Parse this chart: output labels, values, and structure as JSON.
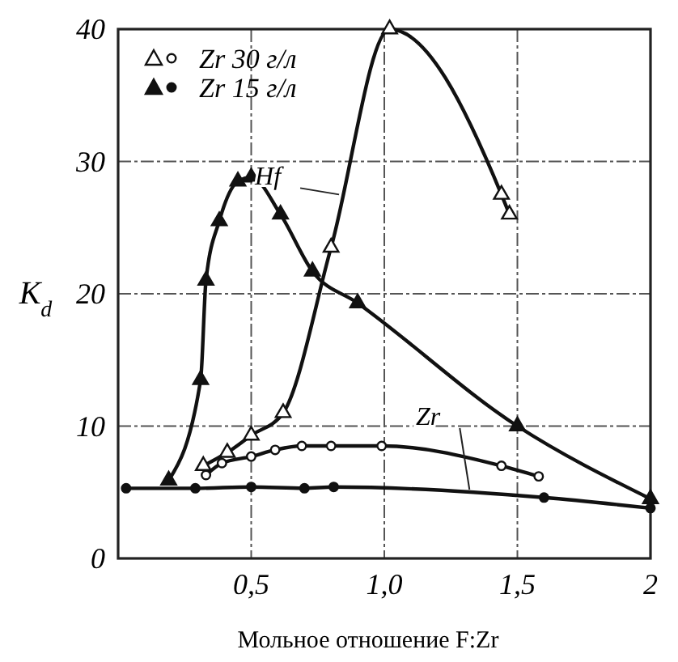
{
  "chart_data": {
    "type": "line",
    "xlabel": "Мольное отношение F:Zr",
    "ylabel": "K$_{d}$",
    "xlim": [
      0,
      2
    ],
    "ylim": [
      0,
      40
    ],
    "xticks": [
      {
        "value": 0.5,
        "label": "0,5"
      },
      {
        "value": 1.0,
        "label": "1,0"
      },
      {
        "value": 1.5,
        "label": "1,5"
      },
      2
    ],
    "yticks": [
      0,
      10,
      20,
      30,
      40
    ],
    "grid": true,
    "legend": "top left",
    "series": [
      {
        "color": "#ffffff",
        "marker": "triangle",
        "x": [
          0.32,
          0.41,
          0.5,
          0.62,
          0.8,
          1.02,
          1.44,
          1.47
        ],
        "values": [
          7,
          8,
          9.3,
          11,
          23.5,
          40,
          27.5,
          26
        ]
      },
      {
        "color": "#111111",
        "marker": "triangle",
        "x": [
          0.19,
          0.31,
          0.33,
          0.38,
          0.45,
          0.5,
          0.61,
          0.73,
          0.9,
          1.5,
          2.0
        ],
        "values": [
          5.9,
          13.5,
          21,
          25.5,
          28.5,
          28.8,
          26,
          21.7,
          19.3,
          10,
          4.5
        ]
      },
      {
        "name": "Zr 30 г/л",
        "color": "#ffffff",
        "marker": "circle",
        "x": [
          0.33,
          0.39,
          0.5,
          0.59,
          0.69,
          0.8,
          0.99,
          1.44,
          1.58
        ],
        "values": [
          6.3,
          7.2,
          7.7,
          8.2,
          8.5,
          8.5,
          8.5,
          7,
          6.2
        ]
      },
      {
        "name": "Zr 15 г/л",
        "color": "#111111",
        "marker": "circle",
        "x": [
          0.03,
          0.29,
          0.5,
          0.7,
          0.81,
          1.6,
          2.0
        ],
        "values": [
          5.3,
          5.3,
          5.4,
          5.3,
          5.4,
          4.6,
          3.8
        ]
      }
    ],
    "annotations": [
      {
        "text": "Hf",
        "x": 0.83,
        "y": 27.5
      },
      {
        "text": "Zr",
        "x": 1.32,
        "y": 5.2
      }
    ]
  }
}
